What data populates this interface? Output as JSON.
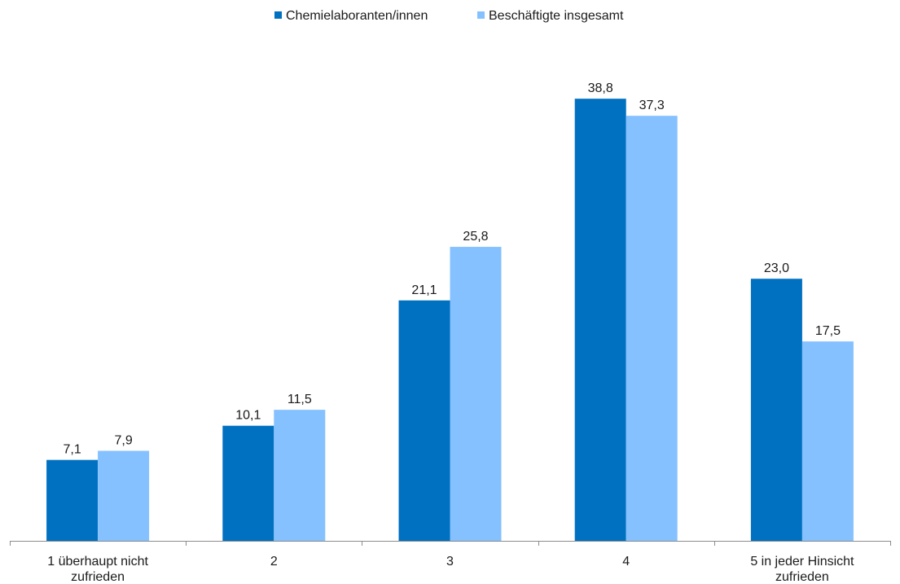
{
  "chart_data": {
    "type": "bar",
    "title": "",
    "xlabel": "",
    "ylabel": "",
    "ylim": [
      0,
      40
    ],
    "grid": false,
    "legend_position": "top-center",
    "categories": [
      [
        "1 überhaupt nicht",
        "zufrieden"
      ],
      [
        "2"
      ],
      [
        "3"
      ],
      [
        "4"
      ],
      [
        "5 in jeder Hinsicht",
        "zufrieden"
      ]
    ],
    "series": [
      {
        "name": "Chemielaboranten/innen",
        "color": "#0070c0",
        "values": [
          7.1,
          10.1,
          21.1,
          38.8,
          23.0
        ],
        "labels": [
          "7,1",
          "10,1",
          "21,1",
          "38,8",
          "23,0"
        ]
      },
      {
        "name": "Beschäftigte insgesamt",
        "color": "#85c1ff",
        "values": [
          7.9,
          11.5,
          25.8,
          37.3,
          17.5
        ],
        "labels": [
          "7,9",
          "11,5",
          "25,8",
          "37,3",
          "17,5"
        ]
      }
    ]
  }
}
